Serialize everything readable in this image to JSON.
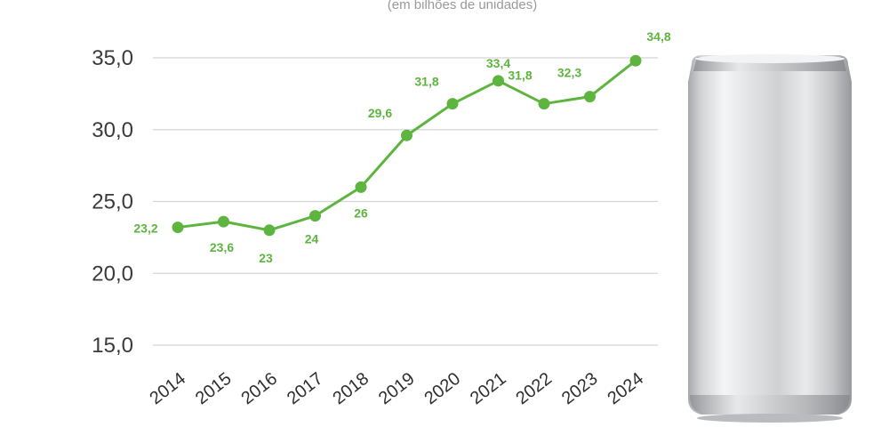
{
  "chart_data": {
    "type": "line",
    "title": "",
    "subtitle": "(em bilhões de unidades)",
    "xlabel": "",
    "ylabel": "",
    "x": [
      "2014",
      "2015",
      "2016",
      "2017",
      "2018",
      "2019",
      "2020",
      "2021",
      "2022",
      "2023",
      "2024"
    ],
    "series": [
      {
        "values": [
          23.2,
          23.6,
          23,
          24,
          26,
          29.6,
          31.8,
          33.4,
          31.8,
          32.3,
          34.8
        ],
        "labels": [
          "23,2",
          "23,6",
          "23",
          "24",
          "26",
          "29,6",
          "31,8",
          "33,4",
          "31,8",
          "32,3",
          "34,8"
        ],
        "color": "#5db540"
      }
    ],
    "yticks": [
      15,
      20,
      25,
      30,
      35
    ],
    "ytick_labels": [
      "15,0",
      "20,0",
      "25,0",
      "30,0",
      "35,0"
    ],
    "ylim": [
      15,
      35
    ],
    "grid": true,
    "legend": "none",
    "decoration": "aluminum-can-image"
  }
}
